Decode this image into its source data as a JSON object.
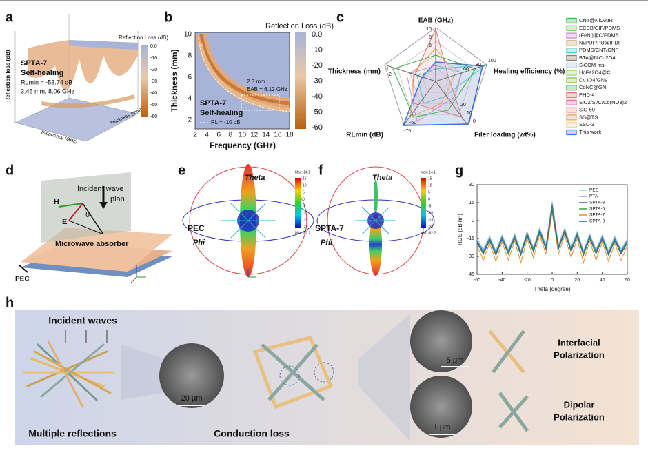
{
  "panels": {
    "a": {
      "label": "a",
      "colorbar_title": "Reflection Loss (dB)",
      "colorbar_ticks": [
        "0.0",
        "-10",
        "-20",
        "-30",
        "-40",
        "-50",
        "-60"
      ],
      "z_axis": "Reflection loss (dB)",
      "x_axis": "Frequency (GHz)",
      "y_axis": "Thickness (mm)",
      "sample": "SPTA-7",
      "state": "Self-healing",
      "rl_min": "RLmin = -53.74 dB",
      "condition": "3.45 mm, 8.06 GHz"
    },
    "b": {
      "label": "b",
      "colorbar_title": "Reflection Loss (dB)",
      "colorbar_ticks": [
        "0.0",
        "-10",
        "-20",
        "-30",
        "-40",
        "-50",
        "-60"
      ],
      "x_axis": "Frequency (GHz)",
      "y_axis": "Thickness (mm)",
      "xticks": [
        "2",
        "4",
        "6",
        "8",
        "10",
        "12",
        "14",
        "16",
        "18"
      ],
      "yticks": [
        "10",
        "8",
        "6",
        "4",
        "2"
      ],
      "thickness_note": "2.3 mm",
      "eab_note": "EAB = 6.12 GHz",
      "sample": "SPTA-7",
      "state": "Self-healing",
      "rl_line": "RL = -10 dB"
    },
    "c": {
      "label": "c",
      "axes": [
        "EAB (GHz)",
        "Healing efficiency (%)",
        "Filer loading (wt%)",
        "RLmin (dB)",
        "Thickness (mm)"
      ],
      "eab_ticks": [
        "10",
        "8",
        "6"
      ],
      "healing_ticks": [
        "100",
        "80",
        "60"
      ],
      "filler_ticks": [
        "0",
        "10",
        "20"
      ],
      "rl_ticks": [
        "-75",
        "-60"
      ],
      "thickness_ticks": [
        "1",
        "2"
      ],
      "legend": [
        {
          "name": "CNT@NiO/NR",
          "color": "#3cb043"
        },
        {
          "name": "ECCB/CIP/PDMS",
          "color": "#7cc96b"
        },
        {
          "name": "(FeNi)@C/PDMS",
          "color": "#c38fd6"
        },
        {
          "name": "Ni/PUF/PU@IPDI",
          "color": "#c9a46b"
        },
        {
          "name": "PDMS/CNT/GNP",
          "color": "#4fc3c3"
        },
        {
          "name": "BTA@NiCo2O4",
          "color": "#8a7a6a"
        },
        {
          "name": "SiCOM-ms",
          "color": "#9ec5e8"
        },
        {
          "name": "HoFe2O4@C",
          "color": "#a5d66b"
        },
        {
          "name": "Co3O4/GNs",
          "color": "#8bc34a"
        },
        {
          "name": "CoNC@GN",
          "color": "#4caf50"
        },
        {
          "name": "PHD-4",
          "color": "#e57373"
        },
        {
          "name": "SiO2/Si/C/Co(NO3)2",
          "color": "#e06ab0"
        },
        {
          "name": "SiC-60",
          "color": "#f0a0a0"
        },
        {
          "name": "SS@TS",
          "color": "#e8a060"
        },
        {
          "name": "SSC-3",
          "color": "#f5d08a"
        },
        {
          "name": "This work",
          "color": "#3a6fd6"
        }
      ]
    },
    "d": {
      "label": "d",
      "incident": [
        "Incident wave",
        "plan"
      ],
      "h": "H",
      "e": "E",
      "theta": "θ",
      "absorber": "Microwave absorber",
      "pec": "PEC"
    },
    "e": {
      "label": "e",
      "theta": "Theta",
      "phi": "Phi",
      "sample": "PEC",
      "max": "Max: 14.1",
      "min": "Min: -62.2",
      "colorbar_ticks": [
        "15",
        "10",
        "5",
        "0",
        "-5",
        "-10",
        "-15",
        "-20"
      ]
    },
    "f": {
      "label": "f",
      "theta": "Theta",
      "phi": "Phi",
      "sample": "SPTA-7",
      "max": "Max: 14.1",
      "min": "Min: -62.2",
      "colorbar_ticks": [
        "15",
        "10",
        "5",
        "0",
        "-5",
        "-10",
        "-15",
        "-20"
      ]
    },
    "g": {
      "label": "g"
    },
    "h": {
      "label": "h",
      "incident": "Incident waves",
      "multiple": "Multiple reflections",
      "conduction": "Conduction loss",
      "scale1": "20 μm",
      "scale2": "5 μm",
      "scale3": "1 μm",
      "interfacial": [
        "Interfacial",
        "Polarization"
      ],
      "dipolar": [
        "Dipolar",
        "Polarization"
      ]
    }
  },
  "chart_data": {
    "type": "line",
    "xlabel": "Theta (degree)",
    "ylabel": "RCS (dB m²)",
    "x": [
      -60,
      -55,
      -50,
      -45,
      -40,
      -35,
      -30,
      -25,
      -20,
      -15,
      -10,
      -5,
      0,
      5,
      10,
      15,
      20,
      25,
      30,
      35,
      40,
      45,
      50,
      55,
      60
    ],
    "xlim": [
      -60,
      60
    ],
    "xticks": [
      -60,
      -40,
      -20,
      0,
      20,
      40,
      60
    ],
    "ylim": [
      -45,
      30
    ],
    "yticks": [
      30,
      15,
      0,
      -15,
      -30,
      -45
    ],
    "series": [
      {
        "name": "PEC",
        "color": "#8fd3e0",
        "values": [
          -15,
          -24,
          -13,
          -25,
          -12,
          -24,
          -11,
          -25,
          -9,
          -22,
          -6,
          -20,
          16,
          -20,
          -6,
          -22,
          -9,
          -25,
          -11,
          -24,
          -12,
          -25,
          -13,
          -24,
          -15
        ]
      },
      {
        "name": "PTA",
        "color": "#9aa9e0",
        "values": [
          -16,
          -25,
          -14,
          -26,
          -13,
          -25,
          -12,
          -26,
          -10,
          -23,
          -7,
          -21,
          15,
          -21,
          -7,
          -23,
          -10,
          -26,
          -12,
          -25,
          -13,
          -26,
          -14,
          -25,
          -16
        ]
      },
      {
        "name": "SPTA-3",
        "color": "#3a5bc7",
        "values": [
          -17,
          -26,
          -15,
          -27,
          -14,
          -26,
          -13,
          -27,
          -11,
          -24,
          -8,
          -22,
          13,
          -22,
          -8,
          -24,
          -11,
          -27,
          -13,
          -26,
          -14,
          -27,
          -15,
          -26,
          -17
        ]
      },
      {
        "name": "SPTA-5",
        "color": "#3aa03a",
        "values": [
          -18,
          -27,
          -16,
          -28,
          -15,
          -27,
          -14,
          -28,
          -12,
          -25,
          -9,
          -23,
          11,
          -23,
          -9,
          -25,
          -12,
          -28,
          -14,
          -27,
          -15,
          -28,
          -16,
          -27,
          -18
        ]
      },
      {
        "name": "SPTA-7",
        "color": "#f08a2a",
        "values": [
          -21,
          -33,
          -19,
          -34,
          -18,
          -33,
          -17,
          -35,
          -15,
          -31,
          -12,
          -28,
          7,
          -28,
          -12,
          -31,
          -15,
          -35,
          -17,
          -33,
          -18,
          -34,
          -19,
          -33,
          -21
        ]
      },
      {
        "name": "SPTA-9",
        "color": "#2a6a7a",
        "values": [
          -19,
          -28,
          -17,
          -29,
          -16,
          -28,
          -15,
          -29,
          -13,
          -26,
          -10,
          -24,
          9,
          -24,
          -10,
          -26,
          -13,
          -29,
          -15,
          -28,
          -16,
          -29,
          -17,
          -28,
          -19
        ]
      }
    ]
  }
}
